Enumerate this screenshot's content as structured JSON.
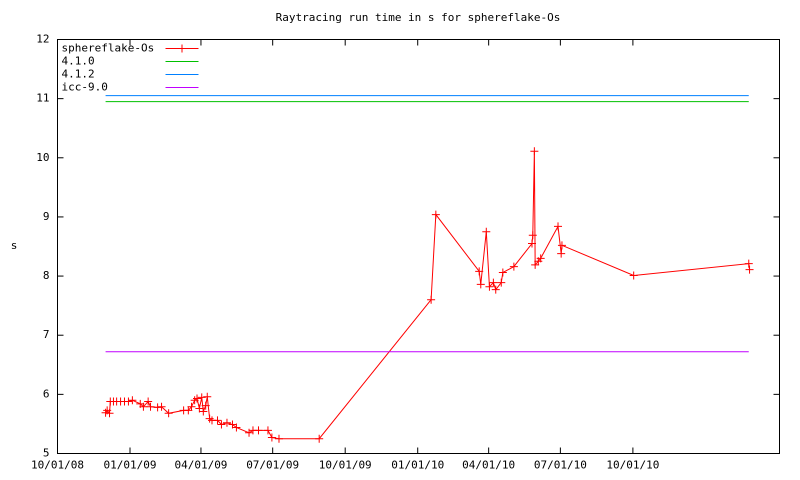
{
  "chart_data": {
    "type": "line",
    "title": "Raytracing run time in s for sphereflake-Os",
    "y_label": "s",
    "xlim": [
      "2008-10-01",
      "2011-04-05"
    ],
    "ylim": [
      5,
      12
    ],
    "xticks": [
      {
        "value": "2008-10-01",
        "label": "10/01/08"
      },
      {
        "value": "2009-01-01",
        "label": "01/01/09"
      },
      {
        "value": "2009-04-01",
        "label": "04/01/09"
      },
      {
        "value": "2009-07-01",
        "label": "07/01/09"
      },
      {
        "value": "2009-10-01",
        "label": "10/01/09"
      },
      {
        "value": "2010-01-01",
        "label": "01/01/10"
      },
      {
        "value": "2010-04-01",
        "label": "04/01/10"
      },
      {
        "value": "2010-07-01",
        "label": "07/01/10"
      },
      {
        "value": "2010-10-01",
        "label": "10/01/10"
      }
    ],
    "yticks": [
      5,
      6,
      7,
      8,
      9,
      10,
      11,
      12
    ],
    "legend": "top-left",
    "grid": false,
    "series": [
      {
        "name": "sphereflake-Os",
        "color": "#ff0000",
        "markers": true,
        "x": [
          "2008-12-01",
          "2008-12-03",
          "2008-12-06",
          "2008-12-07",
          "2008-12-11",
          "2008-12-15",
          "2008-12-20",
          "2008-12-25",
          "2008-12-30",
          "2009-01-04",
          "2009-01-14",
          "2009-01-18",
          "2009-01-24",
          "2009-01-27",
          "2009-02-05",
          "2009-02-10",
          "2009-02-19",
          "2009-03-10",
          "2009-03-16",
          "2009-03-20",
          "2009-03-24",
          "2009-03-27",
          "2009-03-30",
          "2009-04-02",
          "2009-04-04",
          "2009-04-07",
          "2009-04-09",
          "2009-04-12",
          "2009-04-15",
          "2009-04-22",
          "2009-04-27",
          "2009-05-04",
          "2009-05-11",
          "2009-05-16",
          "2009-06-01",
          "2009-06-06",
          "2009-06-13",
          "2009-06-25",
          "2009-06-30",
          "2009-07-09",
          "2009-08-29",
          "2010-01-18",
          "2010-01-24",
          "2010-03-20",
          "2010-03-22",
          "2010-03-29",
          "2010-04-02",
          "2010-04-07",
          "2010-04-10",
          "2010-04-17",
          "2010-04-19",
          "2010-05-03",
          "2010-05-26",
          "2010-05-27",
          "2010-05-29",
          "2010-05-30",
          "2010-06-03",
          "2010-06-06",
          "2010-06-28",
          "2010-07-02",
          "2010-07-03",
          "2010-10-02",
          "2011-02-25",
          "2011-02-26"
        ],
        "values": [
          5.69,
          5.73,
          5.68,
          5.88,
          5.88,
          5.88,
          5.88,
          5.88,
          5.88,
          5.9,
          5.84,
          5.79,
          5.88,
          5.79,
          5.78,
          5.79,
          5.68,
          5.73,
          5.73,
          5.79,
          5.9,
          5.93,
          5.76,
          5.95,
          5.71,
          5.81,
          5.96,
          5.59,
          5.56,
          5.56,
          5.49,
          5.52,
          5.49,
          5.44,
          5.35,
          5.39,
          5.39,
          5.39,
          5.27,
          5.25,
          5.25,
          7.6,
          9.04,
          8.08,
          7.86,
          8.75,
          7.82,
          7.89,
          7.77,
          7.89,
          8.06,
          8.16,
          8.55,
          8.69,
          10.11,
          8.19,
          8.25,
          8.3,
          8.84,
          8.38,
          8.52,
          8.01,
          8.21,
          8.11
        ]
      },
      {
        "name": "4.1.0",
        "color": "#00c000",
        "markers": false,
        "x": [
          "2008-12-01",
          "2011-02-25"
        ],
        "values": [
          10.95,
          10.95
        ]
      },
      {
        "name": "4.1.2",
        "color": "#0080ff",
        "markers": false,
        "x": [
          "2008-12-01",
          "2011-02-25"
        ],
        "values": [
          11.05,
          11.05
        ]
      },
      {
        "name": "icc-9.0",
        "color": "#c000ff",
        "markers": false,
        "x": [
          "2008-12-01",
          "2011-02-25"
        ],
        "values": [
          6.72,
          6.72
        ]
      }
    ]
  }
}
